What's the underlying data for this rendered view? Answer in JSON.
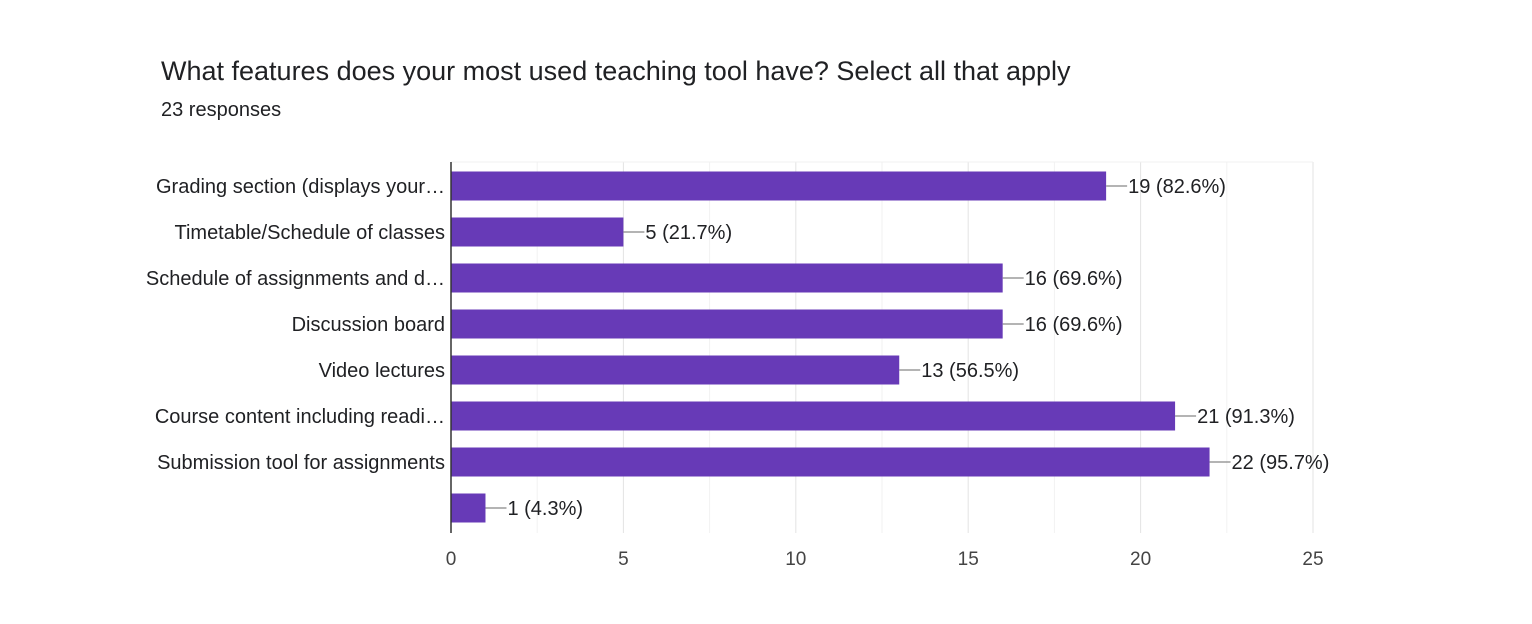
{
  "question": {
    "title": "What features does your most used teaching tool have? Select all that apply",
    "responses": "23 responses"
  },
  "colors": {
    "bar": "#673ab7",
    "grid": "#e6e6e6",
    "axis": "#333333",
    "label": "#202124",
    "tick": "#444444"
  },
  "chart_data": {
    "type": "bar",
    "orientation": "horizontal",
    "categories": [
      "Grading section (displays your…",
      "Timetable/Schedule of classes",
      "Schedule of assignments and d…",
      "Discussion board",
      "Video lectures",
      "Course content including readi…",
      "Submission tool for assignments",
      ""
    ],
    "values": [
      19,
      5,
      16,
      16,
      13,
      21,
      22,
      1
    ],
    "data_labels": [
      "19 (82.6%)",
      "5 (21.7%)",
      "16 (69.6%)",
      "16 (69.6%)",
      "13 (56.5%)",
      "21 (91.3%)",
      "22 (95.7%)",
      "1 (4.3%)"
    ],
    "xlim": [
      0,
      25
    ],
    "xticks": [
      0,
      5,
      10,
      15,
      20,
      25
    ],
    "grid": true,
    "legend": "none"
  }
}
